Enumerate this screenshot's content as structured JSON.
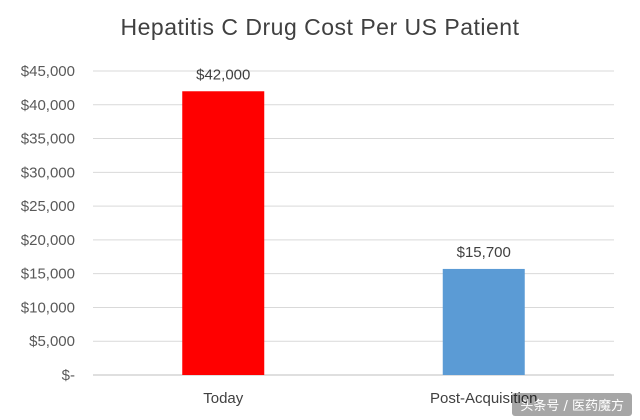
{
  "chart_data": {
    "type": "bar",
    "title": "Hepatitis C Drug Cost Per US Patient",
    "categories": [
      "Today",
      "Post-Acquisition"
    ],
    "values": [
      42000,
      15700
    ],
    "data_labels": [
      "$42,000",
      "$15,700"
    ],
    "colors": [
      "#ff0000",
      "#5b9bd5"
    ],
    "ylim": [
      0,
      45000
    ],
    "yticks": [
      0,
      5000,
      10000,
      15000,
      20000,
      25000,
      30000,
      35000,
      40000,
      45000
    ],
    "ytick_labels": [
      "$-",
      "$5,000",
      "$10,000",
      "$15,000",
      "$20,000",
      "$25,000",
      "$30,000",
      "$35,000",
      "$40,000",
      "$45,000"
    ],
    "xlabel": "",
    "ylabel": "",
    "grid": true,
    "legend": "none"
  },
  "watermark": "头条号 / 医药魔方"
}
